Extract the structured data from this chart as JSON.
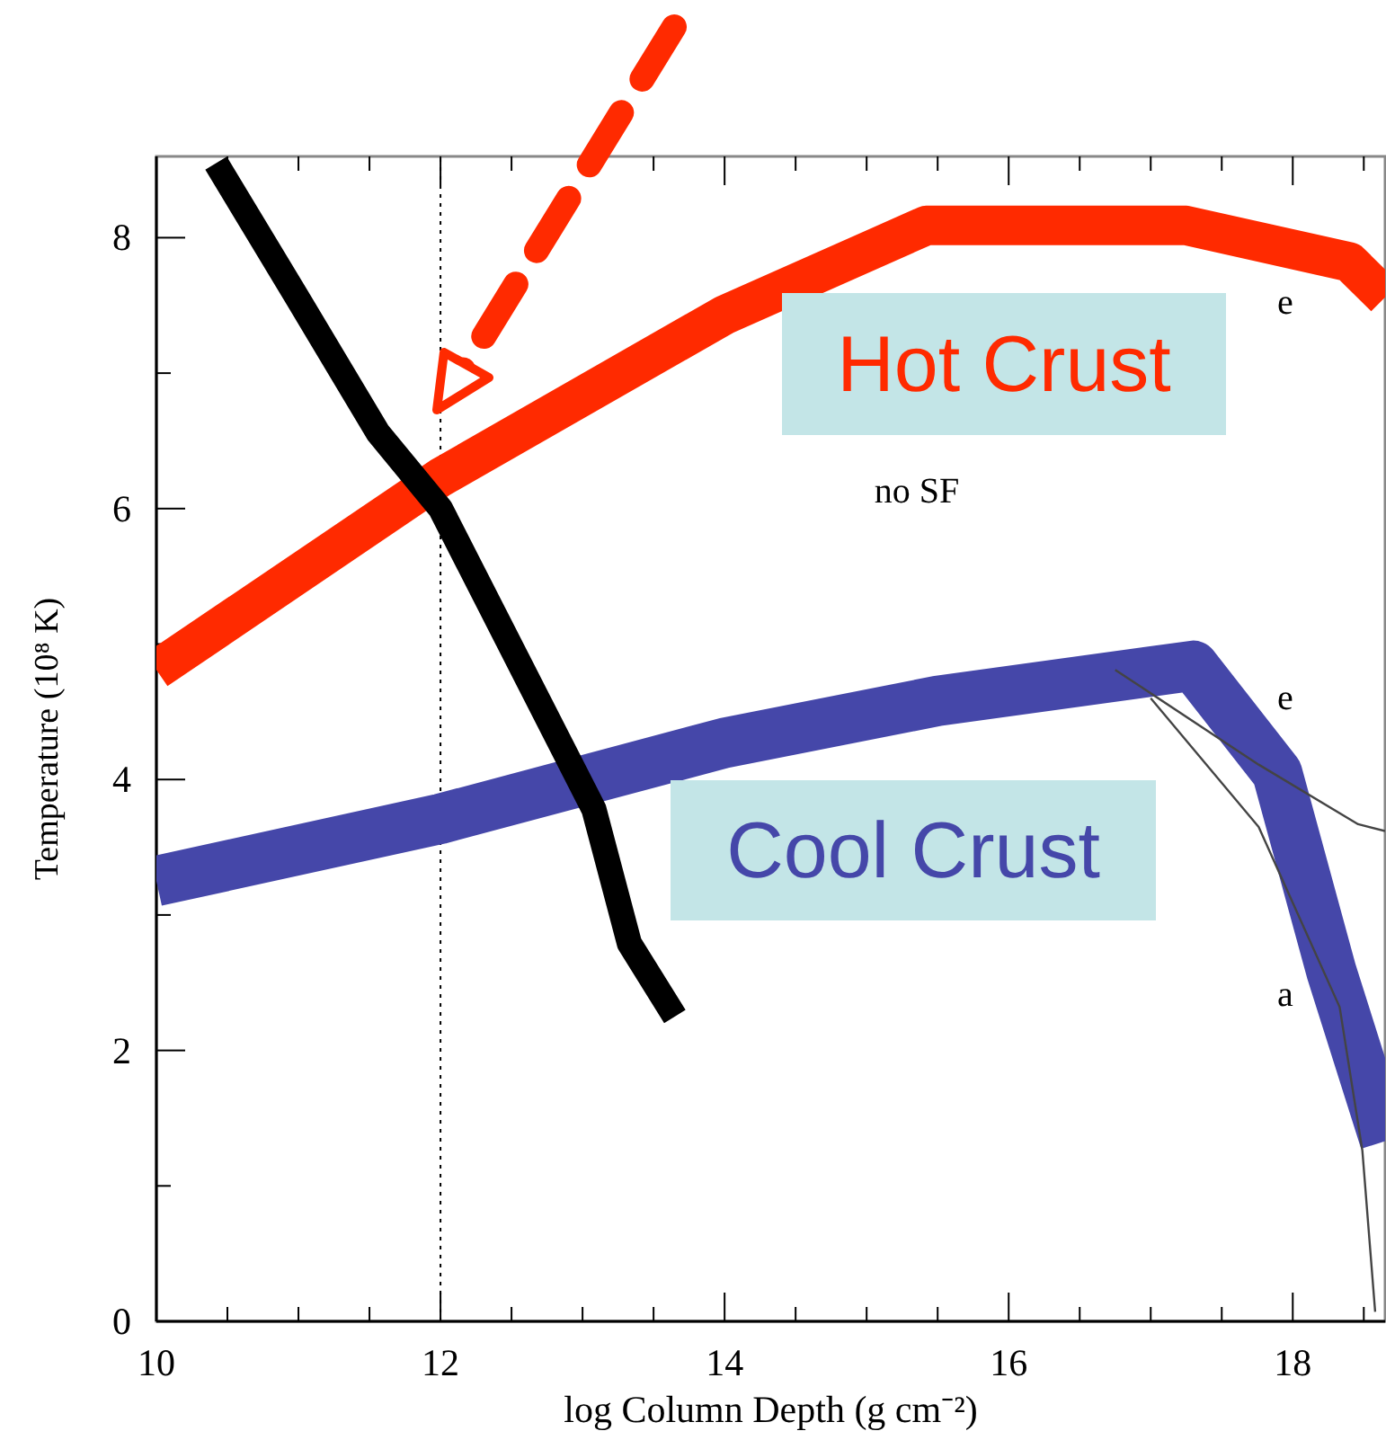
{
  "chart_data": {
    "type": "line",
    "xlabel": "log Column Depth (g cm⁻²)",
    "ylabel": "Temperature (10⁸ K)",
    "xlim": [
      10,
      18.65
    ],
    "ylim": [
      0,
      8.6
    ],
    "xticks": [
      10,
      {
        "value": 10.5,
        "label": null
      },
      {
        "value": 11,
        "label": null
      },
      {
        "value": 11.5,
        "label": null
      },
      12,
      {
        "value": 12.5,
        "label": null
      },
      {
        "value": 13,
        "label": null
      },
      {
        "value": 13.5,
        "label": null
      },
      14,
      {
        "value": 14.5,
        "label": null
      },
      {
        "value": 15,
        "label": null
      },
      {
        "value": 15.5,
        "label": null
      },
      16,
      {
        "value": 16.5,
        "label": null
      },
      {
        "value": 17,
        "label": null
      },
      {
        "value": 17.5,
        "label": null
      },
      18,
      {
        "value": 18.5,
        "label": null
      }
    ],
    "yticks": [
      0,
      {
        "value": 1,
        "label": null
      },
      2,
      {
        "value": 3,
        "label": null
      },
      4,
      {
        "value": 5,
        "label": null
      },
      6,
      {
        "value": 7,
        "label": null
      },
      8
    ],
    "grid": false,
    "marker": "none",
    "line_style": "solid",
    "series": [
      {
        "name": "Hot Crust",
        "color": "#ff2a00",
        "x": [
          10,
          12,
          14,
          15.42,
          17.25,
          18.4,
          18.65
        ],
        "values": [
          4.81,
          6.23,
          7.43,
          8.09,
          8.09,
          7.82,
          7.56
        ]
      },
      {
        "name": "Cool Crust",
        "color": "#4547a9",
        "x": [
          10,
          12,
          14,
          15.5,
          17.3,
          17.89,
          18.27,
          18.65
        ],
        "values": [
          3.25,
          3.71,
          4.27,
          4.58,
          4.84,
          4.05,
          2.59,
          1.33
        ]
      },
      {
        "color": "#000000",
        "x": [
          10.42,
          10.99,
          11.56,
          12,
          13.08,
          13.33,
          13.65
        ],
        "values": [
          8.55,
          7.56,
          6.56,
          6.0,
          3.78,
          2.79,
          2.25
        ]
      },
      {
        "color": "#444444",
        "x": [
          16.75,
          17.76,
          18.46,
          18.65
        ],
        "values": [
          4.81,
          4.11,
          3.67,
          3.62
        ]
      },
      {
        "color": "#444444",
        "x": [
          17.0,
          17.76,
          18.33,
          18.49,
          18.58
        ],
        "values": [
          4.6,
          3.65,
          2.32,
          1.26,
          0.07
        ]
      }
    ],
    "ref_lines": [
      {
        "axis": "x",
        "value": 12,
        "line_style": "dotted",
        "color": "#000000"
      }
    ],
    "annotations": [
      "no SF",
      "e",
      "e",
      "a"
    ]
  }
}
